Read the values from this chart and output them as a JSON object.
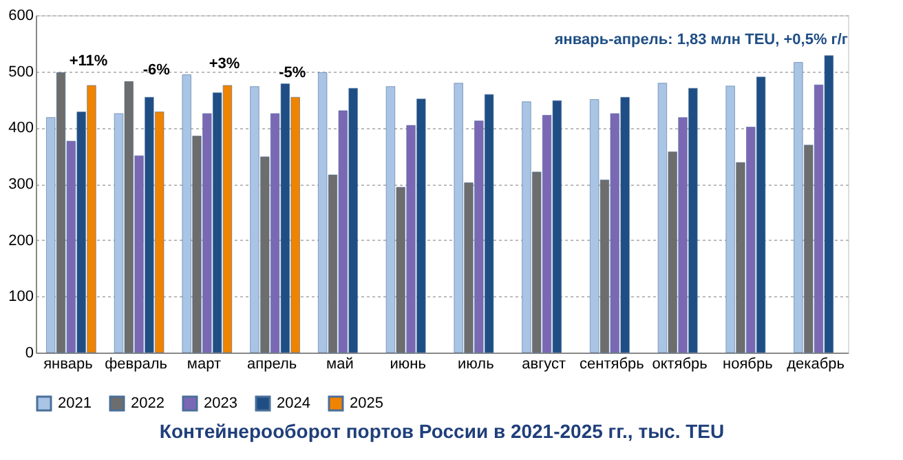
{
  "chart_data": {
    "type": "bar",
    "title": "Контейнерооборот портов России в 2021-2025 гг., тыс. TEU",
    "categories": [
      "январь",
      "февраль",
      "март",
      "апрель",
      "май",
      "июнь",
      "июль",
      "август",
      "сентябрь",
      "октябрь",
      "ноябрь",
      "декабрь"
    ],
    "series": [
      {
        "name": "2021",
        "color": "#a9c4e4",
        "values": [
          418,
          425,
          494,
          473,
          498,
          473,
          479,
          446,
          450,
          479,
          474,
          516
        ]
      },
      {
        "name": "2022",
        "color": "#6d6d6d",
        "values": [
          498,
          482,
          385,
          348,
          316,
          294,
          302,
          321,
          307,
          357,
          338,
          369
        ]
      },
      {
        "name": "2023",
        "color": "#7b68b5",
        "values": [
          376,
          350,
          425,
          425,
          430,
          404,
          412,
          422,
          425,
          418,
          401,
          476
        ]
      },
      {
        "name": "2024",
        "color": "#1f4e85",
        "values": [
          428,
          454,
          462,
          478,
          470,
          451,
          459,
          448,
          454,
          470,
          490,
          528
        ]
      },
      {
        "name": "2025",
        "color": "#f08300",
        "values": [
          475,
          428,
          475,
          454,
          null,
          null,
          null,
          null,
          null,
          null,
          null,
          null
        ]
      }
    ],
    "ylim": [
      0,
      600
    ],
    "yticks": [
      0,
      100,
      200,
      300,
      400,
      500,
      600
    ],
    "grid": "y",
    "legend": "bottom",
    "annotations": [
      "январь-апрель: 1,83 млн TEU, +0,5% г/г",
      "+11%",
      "-6%",
      "+3%",
      "-5%"
    ]
  }
}
